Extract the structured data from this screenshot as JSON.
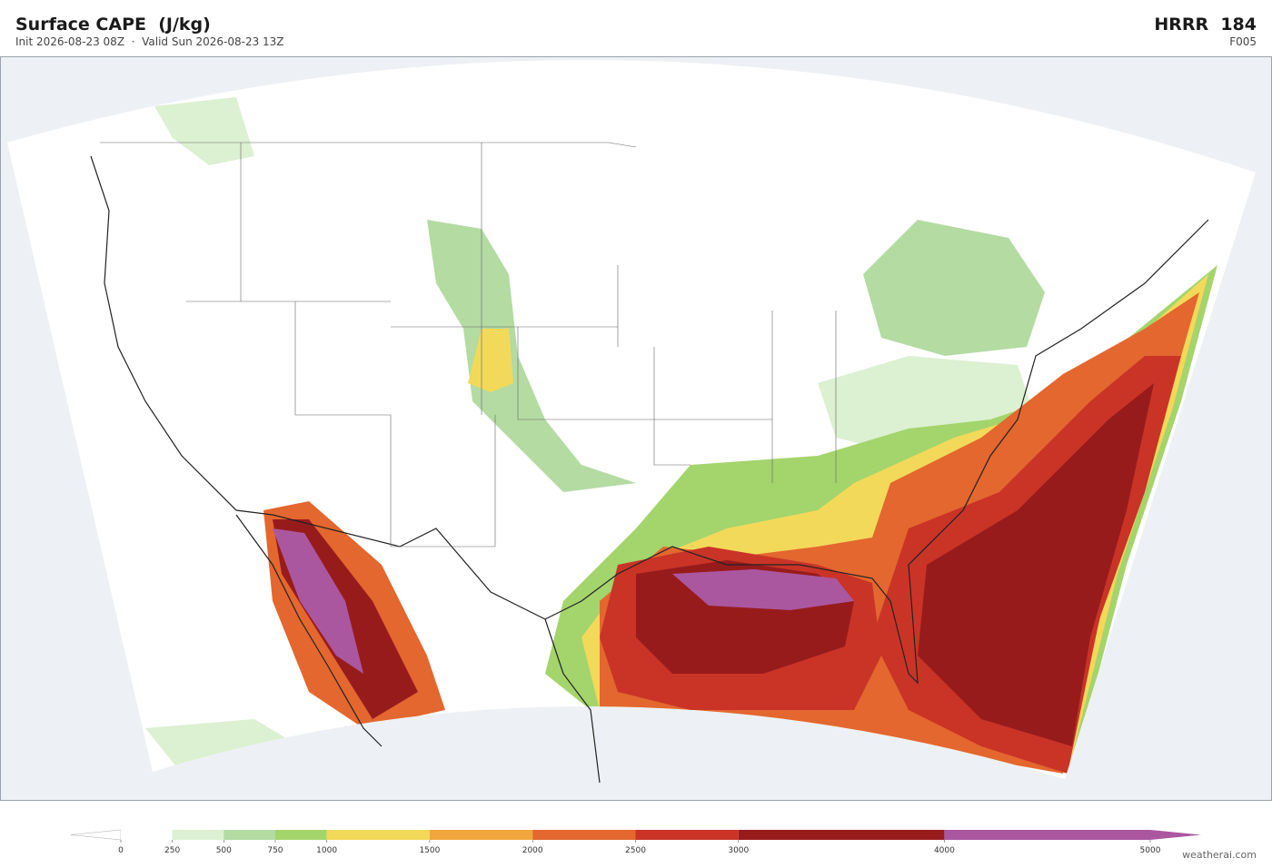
{
  "header": {
    "title": "Surface CAPE  (J/kg)",
    "subtitle": "Init 2026-08-23 08Z  ·  Valid Sun 2026-08-23 13Z",
    "model": "HRRR  184",
    "forecast_hour": "F005"
  },
  "colorbar": {
    "levels": [
      0,
      250,
      500,
      750,
      1000,
      1500,
      2000,
      2500,
      3000,
      4000,
      5000
    ],
    "colors": [
      "#ffffff",
      "#dcf0d2",
      "#b3dba2",
      "#a4d46c",
      "#f3d95a",
      "#f0a63d",
      "#e3672f",
      "#c93427",
      "#981b1c",
      "#ab57a0"
    ],
    "under_color": "#ffffff",
    "over_color": "#ab57a0"
  },
  "credit": "weatherai.com"
}
